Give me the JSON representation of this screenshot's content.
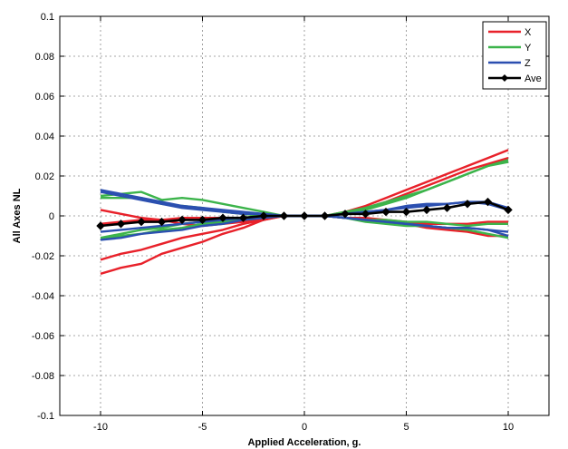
{
  "chart_data": {
    "type": "line",
    "title": "",
    "xlabel": "Applied Acceleration, g.",
    "ylabel": "All Axes NL",
    "xlim": [
      -12,
      12
    ],
    "ylim": [
      -0.1,
      0.1
    ],
    "xticks": [
      -10,
      -5,
      0,
      5,
      10
    ],
    "xtick_labels": [
      "-10",
      "-5",
      "0",
      "5",
      "10"
    ],
    "yticks": [
      -0.1,
      -0.08,
      -0.06,
      -0.04,
      -0.02,
      0,
      0.02,
      0.04,
      0.06,
      0.08,
      0.1
    ],
    "ytick_labels": [
      "-0.1",
      "-0.08",
      "-0.06",
      "-0.04",
      "-0.02",
      "0",
      "0.02",
      "0.04",
      "0.06",
      "0.08",
      "0.1"
    ],
    "grid": true,
    "legend_position": "top-right",
    "x": [
      -10,
      -9,
      -8,
      -7,
      -6,
      -5,
      -4,
      -3,
      -2,
      -1,
      0,
      1,
      2,
      3,
      4,
      5,
      6,
      7,
      8,
      9,
      10
    ],
    "series": [
      {
        "name": "X",
        "color": "#e8212a",
        "marker": "none",
        "values": [
          -0.029,
          -0.026,
          -0.024,
          -0.019,
          -0.016,
          -0.013,
          -0.009,
          -0.006,
          -0.002,
          0,
          0,
          0,
          0.002,
          0.005,
          0.009,
          0.013,
          0.017,
          0.021,
          0.025,
          0.029,
          0.033
        ]
      },
      {
        "name": "",
        "color": "#e8212a",
        "marker": "none",
        "values": [
          -0.022,
          -0.019,
          -0.017,
          -0.014,
          -0.011,
          -0.009,
          -0.007,
          -0.004,
          -0.002,
          0,
          0,
          0,
          0.001,
          0.004,
          0.007,
          0.011,
          0.015,
          0.019,
          0.023,
          0.026,
          0.029
        ]
      },
      {
        "name": "",
        "color": "#e8212a",
        "marker": "none",
        "values": [
          0.003,
          0.001,
          -0.001,
          -0.002,
          -0.004,
          -0.005,
          -0.004,
          -0.003,
          -0.001,
          0,
          0,
          0,
          -0.001,
          -0.002,
          -0.003,
          -0.004,
          -0.006,
          -0.007,
          -0.008,
          -0.01,
          -0.01
        ]
      },
      {
        "name": "",
        "color": "#e8212a",
        "marker": "none",
        "values": [
          -0.004,
          -0.003,
          -0.002,
          -0.002,
          -0.001,
          -0.001,
          -0.001,
          -0.001,
          0,
          0,
          0,
          0,
          -0.001,
          -0.001,
          -0.002,
          -0.003,
          -0.004,
          -0.004,
          -0.004,
          -0.003,
          -0.003
        ]
      },
      {
        "name": "Y",
        "color": "#3cb44b",
        "marker": "none",
        "values": [
          0.01,
          0.011,
          0.012,
          0.008,
          0.009,
          0.008,
          0.006,
          0.004,
          0.002,
          0,
          0,
          0,
          -0.001,
          -0.003,
          -0.004,
          -0.005,
          -0.005,
          -0.006,
          -0.007,
          -0.009,
          -0.011
        ]
      },
      {
        "name": "",
        "color": "#3cb44b",
        "marker": "none",
        "values": [
          -0.012,
          -0.01,
          -0.009,
          -0.007,
          -0.006,
          -0.004,
          -0.003,
          -0.002,
          -0.001,
          0,
          0,
          0,
          0.002,
          0.004,
          0.007,
          0.01,
          0.013,
          0.017,
          0.021,
          0.025,
          0.028
        ]
      },
      {
        "name": "",
        "color": "#3cb44b",
        "marker": "none",
        "values": [
          -0.011,
          -0.009,
          -0.007,
          -0.006,
          -0.004,
          -0.003,
          -0.002,
          -0.001,
          0,
          0,
          0,
          0,
          0.001,
          0.003,
          0.006,
          0.009,
          0.013,
          0.017,
          0.021,
          0.025,
          0.027
        ]
      },
      {
        "name": "",
        "color": "#3cb44b",
        "marker": "none",
        "values": [
          0.009,
          0.009,
          0.009,
          0.006,
          0.005,
          0.004,
          0.002,
          0.001,
          0,
          0,
          0,
          0,
          -0.001,
          -0.002,
          -0.002,
          -0.003,
          -0.003,
          -0.004,
          -0.005,
          -0.004,
          -0.004
        ]
      },
      {
        "name": "Z",
        "color": "#2b4fb0",
        "marker": "none",
        "values": [
          0.013,
          0.011,
          0.009,
          0.007,
          0.005,
          0.004,
          0.003,
          0.002,
          0.001,
          0,
          0,
          0,
          0.001,
          0.002,
          0.003,
          0.004,
          0.005,
          0.006,
          0.007,
          0.007,
          0.004
        ]
      },
      {
        "name": "",
        "color": "#2b4fb0",
        "marker": "none",
        "values": [
          0.012,
          0.01,
          0.008,
          0.006,
          0.004,
          0.003,
          0.002,
          0.001,
          0.001,
          0,
          0,
          0,
          -0.001,
          -0.002,
          -0.003,
          -0.004,
          -0.005,
          -0.006,
          -0.006,
          -0.007,
          -0.01
        ]
      },
      {
        "name": "",
        "color": "#2b4fb0",
        "marker": "none",
        "values": [
          -0.012,
          -0.011,
          -0.009,
          -0.008,
          -0.007,
          -0.005,
          -0.004,
          -0.002,
          -0.001,
          0,
          0,
          0,
          0.001,
          0.002,
          0.003,
          0.005,
          0.006,
          0.006,
          0.007,
          0.006,
          0.003
        ]
      },
      {
        "name": "",
        "color": "#2b4fb0",
        "marker": "none",
        "values": [
          -0.008,
          -0.007,
          -0.006,
          -0.005,
          -0.004,
          -0.003,
          -0.002,
          -0.001,
          0,
          0,
          0,
          0,
          -0.001,
          -0.002,
          -0.003,
          -0.004,
          -0.005,
          -0.006,
          -0.006,
          -0.007,
          -0.008
        ]
      },
      {
        "name": "Ave",
        "color": "#000000",
        "marker": "diamond",
        "values": [
          -0.005,
          -0.004,
          -0.003,
          -0.003,
          -0.002,
          -0.002,
          -0.001,
          -0.001,
          0,
          0,
          0,
          0,
          0.001,
          0.001,
          0.002,
          0.002,
          0.003,
          0.004,
          0.006,
          0.007,
          0.003
        ]
      }
    ]
  }
}
